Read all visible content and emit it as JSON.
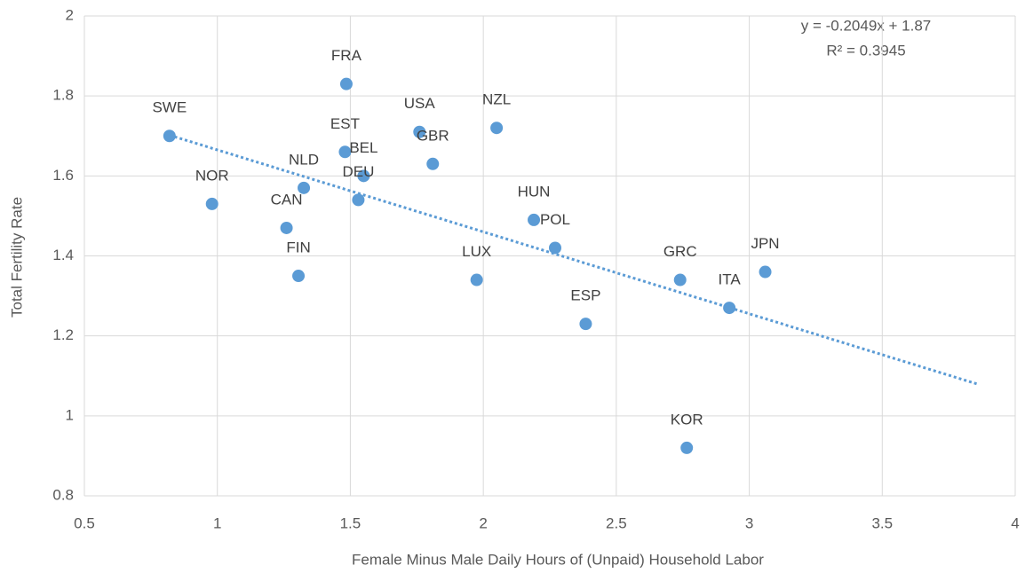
{
  "chart_data": {
    "type": "scatter",
    "x_label": "Female Minus Male Daily Hours of (Unpaid) Household Labor",
    "y_label": "Total Fertility Rate",
    "color": "#5b9bd5",
    "labels": [
      "SWE",
      "NOR",
      "CAN",
      "FIN",
      "NLD",
      "FRA",
      "EST",
      "BEL",
      "DEU",
      "USA",
      "GBR",
      "NZL",
      "LUX",
      "HUN",
      "POL",
      "ESP",
      "GRC",
      "KOR",
      "ITA",
      "JPN"
    ],
    "x": [
      0.82,
      0.98,
      1.26,
      1.305,
      1.325,
      1.485,
      1.48,
      1.55,
      1.53,
      1.76,
      1.81,
      2.05,
      1.975,
      2.19,
      2.27,
      2.385,
      2.74,
      2.765,
      2.925,
      3.06
    ],
    "values": [
      1.7,
      1.53,
      1.47,
      1.35,
      1.57,
      1.83,
      1.66,
      1.6,
      1.54,
      1.71,
      1.63,
      1.72,
      1.34,
      1.49,
      1.42,
      1.23,
      1.34,
      0.92,
      1.27,
      1.36
    ],
    "xlim": [
      0.5,
      4
    ],
    "xticks": [
      0.5,
      1,
      1.5,
      2,
      2.5,
      3,
      3.5,
      4
    ],
    "ylim": [
      0.8,
      2
    ],
    "yticks": [
      0.8,
      1,
      1.2,
      1.4,
      1.6,
      1.8,
      2
    ],
    "grid": true,
    "trendline": {
      "equation": "y = -0.2049x + 1.87",
      "r_squared": "R² = 0.3945",
      "slope": -0.2049,
      "intercept": 1.87,
      "x": [
        0.82,
        3.86
      ]
    }
  }
}
